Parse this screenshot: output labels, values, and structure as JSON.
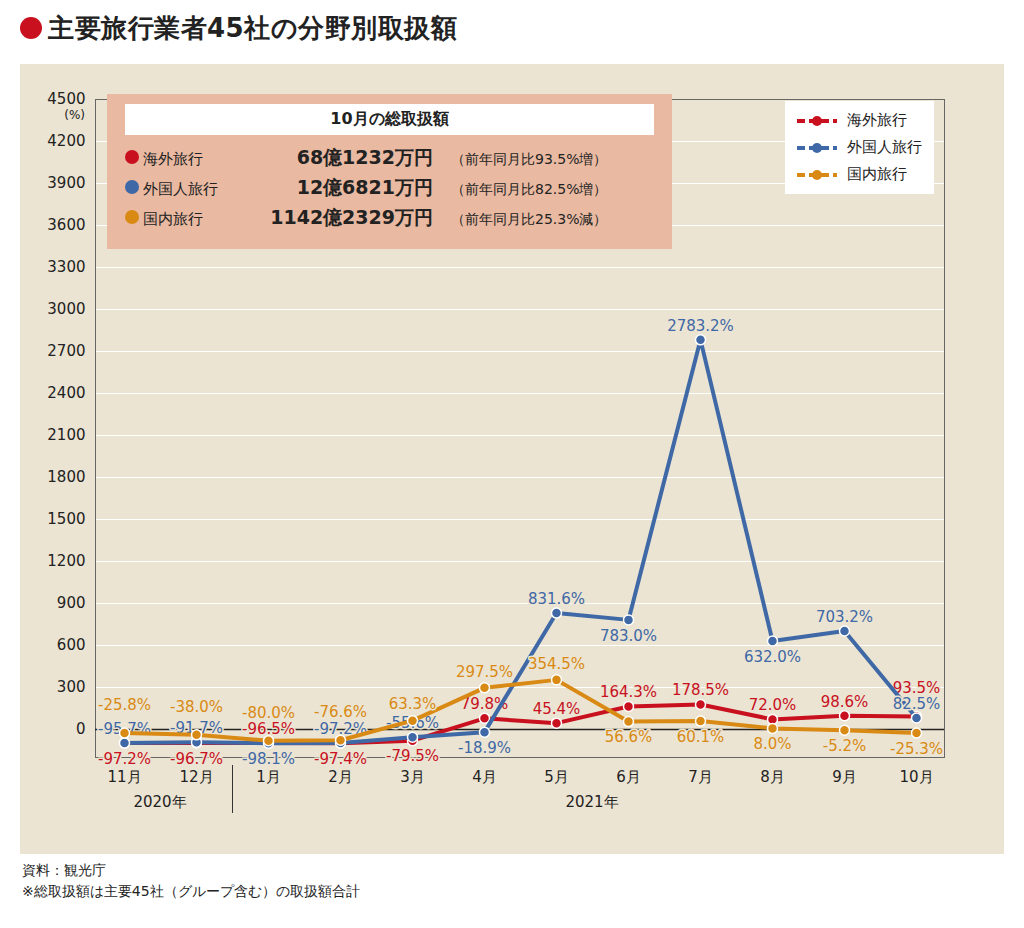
{
  "chart_data": {
    "type": "line",
    "title": "主要旅行業者45社の分野別取扱額",
    "y_label": "(%)",
    "categories": [
      "11月",
      "12月",
      "1月",
      "2月",
      "3月",
      "4月",
      "5月",
      "6月",
      "7月",
      "8月",
      "9月",
      "10月"
    ],
    "x_groups": [
      {
        "label": "2020年",
        "from": "11月",
        "to": "12月"
      },
      {
        "label": "2021年",
        "from": "1月",
        "to": "10月"
      }
    ],
    "series": [
      {
        "name": "海外旅行",
        "color": "#c8101e",
        "values": [
          -97.2,
          -96.7,
          -96.5,
          -97.4,
          -79.5,
          79.8,
          45.4,
          164.3,
          178.5,
          72.0,
          98.6,
          93.5
        ],
        "value_labels": [
          "-97.2%",
          "-96.7%",
          "-96.5%",
          "-97.4%",
          "-79.5%",
          "79.8%",
          "45.4%",
          "164.3%",
          "178.5%",
          "72.0%",
          "98.6%",
          "93.5%"
        ]
      },
      {
        "name": "外国人旅行",
        "color": "#3f68a6",
        "values": [
          -95.7,
          -91.7,
          -98.1,
          -97.2,
          -55.6,
          -18.9,
          831.6,
          783.0,
          2783.2,
          632.0,
          703.2,
          82.5
        ],
        "value_labels": [
          "-95.7%",
          "-91.7%",
          "-98.1%",
          "-97.2%",
          "-55.6%",
          "-18.9%",
          "831.6%",
          "783.0%",
          "2783.2%",
          "632.0%",
          "703.2%",
          "82.5%"
        ]
      },
      {
        "name": "国内旅行",
        "color": "#d98a14",
        "values": [
          -25.8,
          -38.0,
          -80.0,
          -76.6,
          63.3,
          297.5,
          354.5,
          56.6,
          60.1,
          8.0,
          -5.2,
          -25.3
        ],
        "value_labels": [
          "-25.8%",
          "-38.0%",
          "-80.0%",
          "-76.6%",
          "63.3%",
          "297.5%",
          "354.5%",
          "56.6%",
          "60.1%",
          "8.0%",
          "-5.2%",
          "-25.3%"
        ]
      }
    ],
    "ylim": [
      -200,
      4500
    ],
    "yticks": [
      0,
      300,
      600,
      900,
      1200,
      1500,
      1800,
      2100,
      2400,
      2700,
      3000,
      3300,
      3600,
      3900,
      4200,
      4500
    ],
    "grid": true,
    "legend": "top-right",
    "data_labels": true,
    "marker": "circle",
    "annotations": {
      "title": "10月の総取扱額",
      "rows": [
        {
          "label": "海外旅行",
          "amount": "68億1232万円",
          "note": "（前年同月比93.5%増）"
        },
        {
          "label": "外国人旅行",
          "amount": "12億6821万円",
          "note": "（前年同月比82.5%増）"
        },
        {
          "label": "国内旅行",
          "amount": "1142億2329万円",
          "note": "（前年同月比25.3%減）"
        }
      ]
    },
    "notes": [
      "資料：観光庁",
      "※総取扱額は主要45社（グループ含む）の取扱額合計"
    ]
  }
}
